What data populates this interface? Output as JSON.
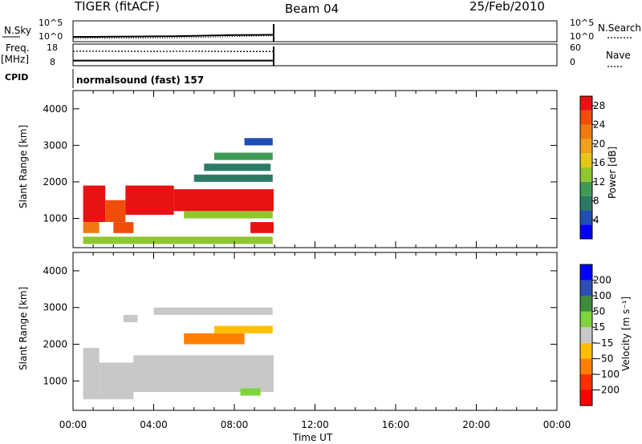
{
  "header": {
    "station": "TIGER (fitACF)",
    "beam": "Beam 04",
    "date": "25/Feb/2010"
  },
  "colors": {
    "power_scale": [
      "#0000ff",
      "#1f4fb5",
      "#2c7a66",
      "#3f9a55",
      "#8fc72e",
      "#e4c51a",
      "#f0a01a",
      "#f07a10",
      "#f04d0a",
      "#e81212"
    ],
    "velocity_scale": [
      "#ff0000",
      "#ff3000",
      "#ff8000",
      "#ffbf00",
      "#c8c8c8",
      "#7fd43c",
      "#3c8c3c",
      "#2a4fb5",
      "#0000ff"
    ],
    "ground_scatter": "#c8c8c8",
    "text": "#000000"
  },
  "chart_data": [
    {
      "type": "line",
      "name": "nsky-panel",
      "left_label": "N.Sky",
      "left_ticks": [
        "10^5",
        "10^0"
      ],
      "right_ticks": [
        "10^5",
        "10^0"
      ],
      "right_label": "N.Search",
      "x": [
        0.0,
        1.0,
        2.0,
        3.0,
        4.0,
        5.0,
        6.0,
        7.0,
        8.0,
        9.0,
        9.95
      ],
      "series": [
        {
          "style": "solid",
          "values": [
            1.0,
            1.0,
            1.05,
            1.1,
            1.15,
            1.2,
            1.3,
            1.45,
            1.55,
            1.6,
            1.65
          ]
        },
        {
          "style": "dotted",
          "values": [
            0.5,
            0.55,
            0.6,
            0.6,
            0.65,
            0.7,
            0.8,
            0.95,
            1.1,
            1.25,
            1.35
          ]
        }
      ],
      "xlim": [
        0,
        24
      ]
    },
    {
      "type": "line",
      "name": "freq-panel",
      "left_label": [
        "Freq.",
        "[MHz]"
      ],
      "left_ticks": [
        "18",
        "8"
      ],
      "right_ticks": [
        "60",
        "0"
      ],
      "right_label": "Nave",
      "x": [
        0.0,
        2.0,
        4.0,
        6.0,
        8.0,
        9.95
      ],
      "series": [
        {
          "style": "solid",
          "values": [
            10.0,
            10.0,
            10.0,
            10.0,
            10.0,
            10.0
          ]
        },
        {
          "style": "dotted",
          "values": [
            44,
            44,
            43,
            44,
            43,
            43
          ]
        }
      ],
      "xlim": [
        0,
        24
      ]
    },
    {
      "type": "heatmap",
      "name": "power-panel",
      "cpid_label": "CPID",
      "cpid_text": "normalsound (fast) 157",
      "ylabel": "Slant Range [km]",
      "xlim": [
        0,
        24
      ],
      "ylim": [
        200,
        4500
      ],
      "yticks": [
        "1000",
        "2000",
        "3000",
        "4000"
      ],
      "colorbar": {
        "label": "Power [dB]",
        "ticks": [
          "4",
          "8",
          "12",
          "16",
          "20",
          "24",
          "28"
        ],
        "range": [
          0,
          30
        ]
      },
      "cells": [
        {
          "t0": 0.5,
          "t1": 1.6,
          "r0": 900,
          "r1": 1900,
          "v": 27
        },
        {
          "t0": 1.6,
          "t1": 2.6,
          "r0": 900,
          "r1": 1500,
          "v": 25
        },
        {
          "t0": 2.6,
          "t1": 5.0,
          "r0": 1100,
          "r1": 1900,
          "v": 28
        },
        {
          "t0": 5.0,
          "t1": 9.95,
          "r0": 1200,
          "r1": 1800,
          "v": 27
        },
        {
          "t0": 6.5,
          "t1": 9.95,
          "r0": 1400,
          "r1": 1600,
          "v": 29
        },
        {
          "t0": 8.8,
          "t1": 9.95,
          "r0": 600,
          "r1": 900,
          "v": 28
        },
        {
          "t0": 2.0,
          "t1": 3.0,
          "r0": 600,
          "r1": 900,
          "v": 26
        },
        {
          "t0": 0.5,
          "t1": 1.3,
          "r0": 600,
          "r1": 900,
          "v": 22
        },
        {
          "t0": 5.5,
          "t1": 9.9,
          "r0": 1000,
          "r1": 1200,
          "v": 14
        },
        {
          "t0": 6.0,
          "t1": 9.9,
          "r0": 2000,
          "r1": 2200,
          "v": 8
        },
        {
          "t0": 6.5,
          "t1": 9.8,
          "r0": 2300,
          "r1": 2500,
          "v": 6
        },
        {
          "t0": 7.0,
          "t1": 9.9,
          "r0": 2600,
          "r1": 2800,
          "v": 10
        },
        {
          "t0": 8.5,
          "t1": 9.9,
          "r0": 3000,
          "r1": 3200,
          "v": 5
        },
        {
          "t0": 0.5,
          "t1": 9.9,
          "r0": 300,
          "r1": 500,
          "v": 12
        }
      ]
    },
    {
      "type": "heatmap",
      "name": "velocity-panel",
      "ylabel": "Slant Range [km]",
      "xlim": [
        0,
        24
      ],
      "ylim": [
        200,
        4500
      ],
      "yticks": [
        "1000",
        "2000",
        "3000",
        "4000"
      ],
      "colorbar": {
        "label": "Velocity [m s⁻¹]",
        "ticks": [
          "200",
          "100",
          "50",
          "15",
          "−15",
          "−50",
          "−100",
          "−200"
        ]
      },
      "xticks": [
        "00:00",
        "04:00",
        "08:00",
        "12:00",
        "16:00",
        "20:00",
        "00:00"
      ],
      "xlabel": "Time UT",
      "cells": [
        {
          "t0": 0.5,
          "t1": 1.3,
          "r0": 500,
          "r1": 1900,
          "v": 0
        },
        {
          "t0": 1.3,
          "t1": 3.0,
          "r0": 500,
          "r1": 1500,
          "v": 0
        },
        {
          "t0": 3.0,
          "t1": 9.95,
          "r0": 700,
          "r1": 1700,
          "v": 0
        },
        {
          "t0": 8.3,
          "t1": 9.3,
          "r0": 600,
          "r1": 800,
          "v": 40
        },
        {
          "t0": 5.5,
          "t1": 8.5,
          "r0": 2000,
          "r1": 2300,
          "v": -80
        },
        {
          "t0": 7.0,
          "t1": 9.9,
          "r0": 2300,
          "r1": 2500,
          "v": -40
        },
        {
          "t0": 4.0,
          "t1": 9.9,
          "r0": 2800,
          "r1": 3000,
          "v": 0
        },
        {
          "t0": 2.5,
          "t1": 3.2,
          "r0": 2600,
          "r1": 2800,
          "v": 0
        }
      ]
    }
  ]
}
